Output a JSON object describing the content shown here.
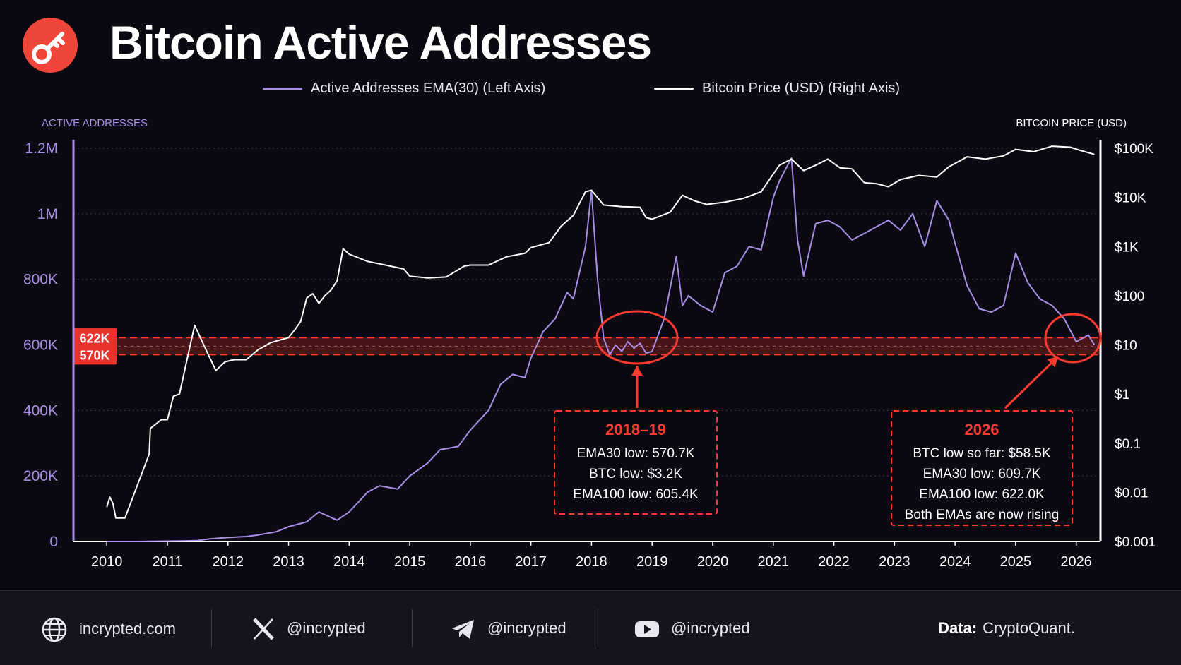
{
  "header": {
    "title": "Bitcoin Active Addresses",
    "logo_icon": "key-icon",
    "logo_color": "#f0463a"
  },
  "legend": {
    "ema_label": "Active Addresses EMA(30) (Left Axis)",
    "price_label": "Bitcoin Price (USD) (Right Axis)"
  },
  "chart_data": {
    "type": "line",
    "left_axis_title": "ACTIVE ADDRESSES",
    "right_axis_title": "BITCOIN PRICE (USD)",
    "left_ticks": [
      "0",
      "200K",
      "400K",
      "600K",
      "800K",
      "1M",
      "1.2M"
    ],
    "left_tick_values": [
      0,
      200000,
      400000,
      600000,
      800000,
      1000000,
      1200000
    ],
    "right_ticks": [
      "$0.001",
      "$0.01",
      "$0.1",
      "$1",
      "$10",
      "$100",
      "$1K",
      "$10K",
      "$100K"
    ],
    "right_tick_values": [
      0.001,
      0.01,
      0.1,
      1,
      10,
      100,
      1000,
      10000,
      100000
    ],
    "x_ticks": [
      "2010",
      "2011",
      "2012",
      "2013",
      "2014",
      "2015",
      "2016",
      "2017",
      "2018",
      "2019",
      "2020",
      "2021",
      "2022",
      "2023",
      "2024",
      "2025",
      "2026"
    ],
    "xlim": [
      2009.45,
      2026.4
    ],
    "ylim_left": [
      0,
      1200000
    ],
    "ylim_right_log": [
      0.001,
      100000
    ],
    "right_scale": "log",
    "grid": "horizontal dotted",
    "colors": {
      "ema": "#a98ee8",
      "price": "#ffffff",
      "band": "#e8322a"
    },
    "series": [
      {
        "name": "Active Addresses EMA(30) (Left Axis)",
        "axis": "left",
        "x": [
          2010.0,
          2010.5,
          2011.0,
          2011.3,
          2011.5,
          2011.7,
          2012.0,
          2012.3,
          2012.5,
          2012.8,
          2013.0,
          2013.3,
          2013.5,
          2013.8,
          2014.0,
          2014.3,
          2014.5,
          2014.8,
          2015.0,
          2015.3,
          2015.5,
          2015.8,
          2016.0,
          2016.3,
          2016.5,
          2016.7,
          2016.9,
          2017.0,
          2017.2,
          2017.4,
          2017.6,
          2017.7,
          2017.9,
          2018.0,
          2018.1,
          2018.2,
          2018.3,
          2018.4,
          2018.5,
          2018.6,
          2018.7,
          2018.8,
          2018.9,
          2019.0,
          2019.2,
          2019.4,
          2019.5,
          2019.6,
          2019.8,
          2020.0,
          2020.2,
          2020.4,
          2020.6,
          2020.8,
          2021.0,
          2021.1,
          2021.3,
          2021.4,
          2021.5,
          2021.7,
          2021.9,
          2022.1,
          2022.3,
          2022.5,
          2022.7,
          2022.9,
          2023.1,
          2023.3,
          2023.5,
          2023.7,
          2023.9,
          2024.0,
          2024.2,
          2024.4,
          2024.6,
          2024.8,
          2025.0,
          2025.2,
          2025.4,
          2025.6,
          2025.8,
          2026.0,
          2026.2,
          2026.3
        ],
        "values": [
          0,
          0,
          1000,
          2000,
          3000,
          8000,
          12000,
          15000,
          20000,
          30000,
          45000,
          60000,
          90000,
          65000,
          90000,
          150000,
          170000,
          160000,
          200000,
          240000,
          280000,
          290000,
          340000,
          400000,
          480000,
          510000,
          500000,
          560000,
          640000,
          680000,
          760000,
          740000,
          900000,
          1070000,
          800000,
          620000,
          570000,
          600000,
          580000,
          610000,
          590000,
          605000,
          575000,
          580000,
          680000,
          870000,
          720000,
          750000,
          720000,
          700000,
          820000,
          840000,
          900000,
          890000,
          1050000,
          1100000,
          1170000,
          920000,
          810000,
          970000,
          980000,
          960000,
          920000,
          940000,
          960000,
          980000,
          950000,
          1000000,
          900000,
          1040000,
          980000,
          910000,
          780000,
          710000,
          700000,
          720000,
          880000,
          790000,
          740000,
          720000,
          680000,
          609700,
          630000,
          600000
        ]
      },
      {
        "name": "Bitcoin Price (USD) (Right Axis)",
        "axis": "right",
        "x": [
          2010.0,
          2010.05,
          2010.1,
          2010.15,
          2010.3,
          2010.7,
          2010.72,
          2010.9,
          2011.0,
          2011.1,
          2011.2,
          2011.35,
          2011.45,
          2011.6,
          2011.8,
          2011.95,
          2012.1,
          2012.3,
          2012.5,
          2012.7,
          2012.9,
          2013.0,
          2013.1,
          2013.2,
          2013.3,
          2013.4,
          2013.5,
          2013.6,
          2013.7,
          2013.8,
          2013.9,
          2014.0,
          2014.3,
          2014.6,
          2014.9,
          2015.0,
          2015.3,
          2015.6,
          2015.9,
          2016.0,
          2016.3,
          2016.6,
          2016.9,
          2017.0,
          2017.3,
          2017.5,
          2017.7,
          2017.9,
          2018.0,
          2018.2,
          2018.5,
          2018.8,
          2018.9,
          2019.0,
          2019.3,
          2019.5,
          2019.7,
          2019.9,
          2020.2,
          2020.5,
          2020.8,
          2021.0,
          2021.1,
          2021.3,
          2021.5,
          2021.7,
          2021.9,
          2022.1,
          2022.3,
          2022.5,
          2022.7,
          2022.9,
          2023.1,
          2023.4,
          2023.7,
          2023.9,
          2024.2,
          2024.5,
          2024.8,
          2025.0,
          2025.3,
          2025.6,
          2025.9,
          2026.1,
          2026.3
        ],
        "values": [
          0.005,
          0.008,
          0.006,
          0.003,
          0.003,
          0.06,
          0.2,
          0.3,
          0.3,
          0.9,
          1,
          7,
          25,
          10,
          3,
          4.5,
          5,
          5,
          8,
          11,
          13,
          14,
          20,
          30,
          90,
          110,
          70,
          100,
          130,
          200,
          900,
          700,
          500,
          420,
          350,
          250,
          230,
          240,
          400,
          420,
          420,
          620,
          730,
          950,
          1200,
          2600,
          4300,
          13000,
          14000,
          7000,
          6500,
          6300,
          3900,
          3600,
          5000,
          11000,
          8500,
          7200,
          8000,
          9500,
          13000,
          30000,
          45000,
          60000,
          35000,
          45000,
          60000,
          40000,
          38000,
          20000,
          19000,
          16500,
          23000,
          28000,
          26000,
          42000,
          67000,
          60000,
          70000,
          95000,
          85000,
          110000,
          105000,
          88000,
          75000
        ]
      }
    ],
    "band": {
      "upper": 622000,
      "lower": 570000,
      "upper_label": "622K",
      "lower_label": "570K"
    },
    "annotations": [
      {
        "title": "2018–19",
        "lines": [
          "EMA30 low: 570.7K",
          "BTC low: $3.2K",
          "EMA100 low: 605.4K"
        ],
        "target_x": 2018.7,
        "target_y": 600000
      },
      {
        "title": "2026",
        "lines": [
          "BTC low so far: $58.5K",
          "EMA30 low: 609.7K",
          "EMA100 low: 622.0K",
          "Both EMAs are now rising"
        ],
        "target_x": 2026.0,
        "target_y": 610000
      }
    ]
  },
  "footer": {
    "website": "incrypted.com",
    "x_handle": "@incrypted",
    "telegram_handle": "@incrypted",
    "youtube_handle": "@incrypted",
    "source_label": "Data:",
    "source_name": "CryptoQuant."
  }
}
